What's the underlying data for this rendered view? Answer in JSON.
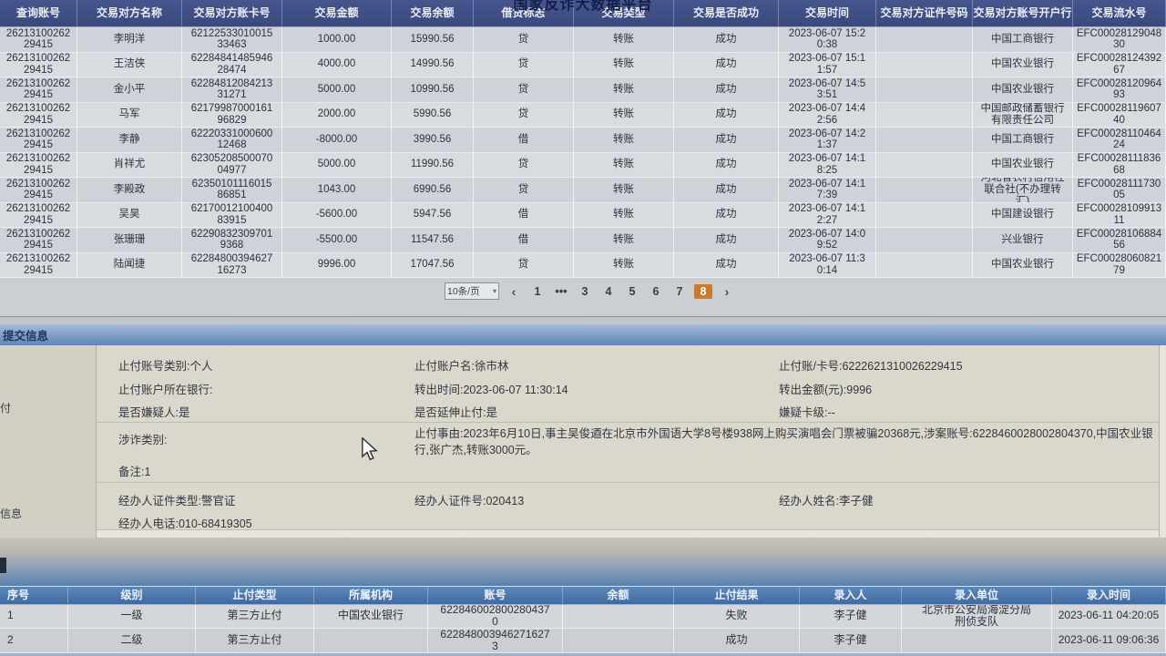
{
  "platform_title": "国家反诈大数据平台",
  "txn": {
    "columns": [
      "查询账号",
      "交易对方名称",
      "交易对方账卡号",
      "交易金额",
      "交易余额",
      "借贷标志",
      "交易类型",
      "交易是否成功",
      "交易时间",
      "交易对方证件号码",
      "交易对方账号开户行",
      "交易流水号"
    ],
    "rows": [
      [
        "26213100262\n29415",
        "李明洋",
        "62122533010015\n33463",
        "1000.00",
        "15990.56",
        "贷",
        "转账",
        "成功",
        "2023-06-07 15:2\n0:38",
        "",
        "中国工商银行",
        "EFC00028129048\n30"
      ],
      [
        "26213100262\n29415",
        "王洁侠",
        "62284841485946\n28474",
        "4000.00",
        "14990.56",
        "贷",
        "转账",
        "成功",
        "2023-06-07 15:1\n1:57",
        "",
        "中国农业银行",
        "EFC00028124392\n67"
      ],
      [
        "26213100262\n29415",
        "金小平",
        "62284812084213\n31271",
        "5000.00",
        "10990.56",
        "贷",
        "转账",
        "成功",
        "2023-06-07 14:5\n3:51",
        "",
        "中国农业银行",
        "EFC00028120964\n93"
      ],
      [
        "26213100262\n29415",
        "马军",
        "62179987000161\n96829",
        "2000.00",
        "5990.56",
        "贷",
        "转账",
        "成功",
        "2023-06-07 14:4\n2:56",
        "",
        "中国邮政储蓄银行\n有限责任公司",
        "EFC00028119607\n40"
      ],
      [
        "26213100262\n29415",
        "李静",
        "62220331000600\n12468",
        "-8000.00",
        "3990.56",
        "借",
        "转账",
        "成功",
        "2023-06-07 14:2\n1:37",
        "",
        "中国工商银行",
        "EFC00028110464\n24"
      ],
      [
        "26213100262\n29415",
        "肖祥尤",
        "62305208500070\n04977",
        "5000.00",
        "11990.56",
        "贷",
        "转账",
        "成功",
        "2023-06-07 14:1\n8:25",
        "",
        "中国农业银行",
        "EFC00028111836\n68"
      ],
      [
        "26213100262\n29415",
        "李殿政",
        "62350101116015\n86851",
        "1043.00",
        "6990.56",
        "贷",
        "转账",
        "成功",
        "2023-06-07 14:1\n7:39",
        "",
        "河北省农村信用社\n联合社(不办理转\n汇)",
        "EFC00028111730\n05"
      ],
      [
        "26213100262\n29415",
        "吴昊",
        "62170012100400\n83915",
        "-5600.00",
        "5947.56",
        "借",
        "转账",
        "成功",
        "2023-06-07 14:1\n2:27",
        "",
        "中国建设银行",
        "EFC00028109913\n11"
      ],
      [
        "26213100262\n29415",
        "张珊珊",
        "62290832309701\n9368",
        "-5500.00",
        "11547.56",
        "借",
        "转账",
        "成功",
        "2023-06-07 14:0\n9:52",
        "",
        "兴业银行",
        "EFC00028106884\n56"
      ],
      [
        "26213100262\n29415",
        "陆闻捷",
        "62284800394627\n16273",
        "9996.00",
        "17047.56",
        "贷",
        "转账",
        "成功",
        "2023-06-07 11:3\n0:14",
        "",
        "中国农业银行",
        "EFC00028060821\n79"
      ]
    ]
  },
  "pagination": {
    "size": "10条/页",
    "caret": "▾",
    "prev": "‹",
    "p1": "1",
    "ellipsis": "•••",
    "p3": "3",
    "p4": "4",
    "p5": "5",
    "p6": "6",
    "p7": "7",
    "p8": "8",
    "next": "›"
  },
  "submit": {
    "title": "提交信息",
    "gutter": [
      "付",
      "信息"
    ],
    "col1": [
      "止付账号类别:个人",
      "止付账户所在银行:",
      "是否嫌疑人:是"
    ],
    "col2": [
      "止付账户名:徐市林",
      "转出时间:2023-06-07 11:30:14",
      "是否延伸止付:是"
    ],
    "col3": [
      "止付账/卡号:6222621310026229415",
      "转出金额(元):9996",
      "嫌疑卡级:--"
    ],
    "fraud_type": "涉诈类别:",
    "reason": "止付事由:2023年6月10日,事主吴俊逎在北京市外国语大学8号楼938网上购买演唱会门票被骗20368元,涉案账号:6228460028002804370,中国农业银行,张广杰,转账3000元。",
    "note": "备注:1",
    "officer": [
      "经办人证件类型:警官证",
      "经办人证件号:020413",
      "经办人姓名:李子健",
      "经办人电话:010-68419305"
    ]
  },
  "stop": {
    "columns": [
      "序号",
      "级别",
      "止付类型",
      "所属机构",
      "账号",
      "余额",
      "止付结果",
      "录入人",
      "录入单位",
      "录入时间"
    ],
    "rows": [
      [
        "1",
        "一级",
        "第三方止付",
        "中国农业银行",
        "622846002800280437\n0",
        "",
        "失败",
        "李子健",
        "北京市公安局海淀分局\n刑侦支队",
        "2023-06-11 04:20:05"
      ],
      [
        "2",
        "二级",
        "第三方止付",
        "",
        "622848003946271627\n3",
        "",
        "成功",
        "李子健",
        "",
        "2023-06-11 09:06:36"
      ]
    ]
  }
}
